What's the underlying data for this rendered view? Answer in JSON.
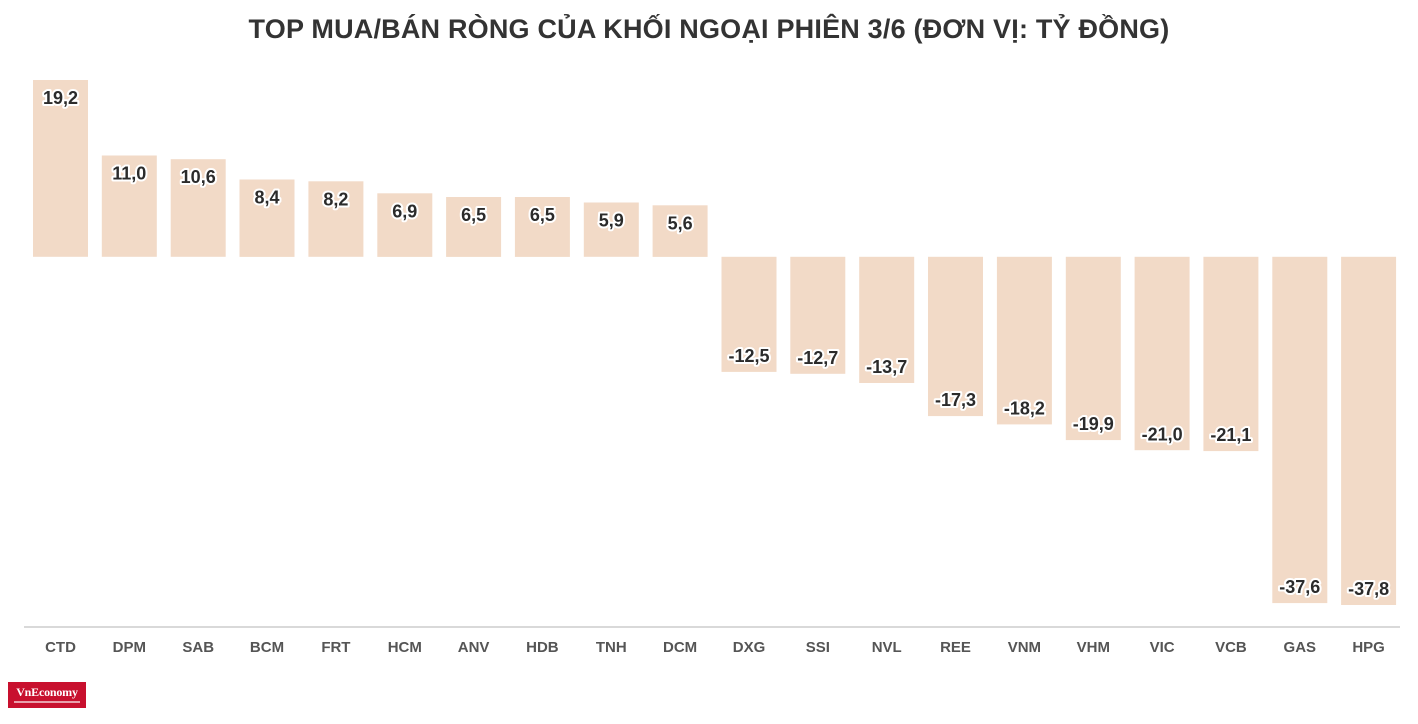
{
  "title": "TOP MUA/BÁN RÒNG CỦA KHỐI NGOẠI PHIÊN 3/6 (ĐƠN VỊ: TỶ ĐỒNG)",
  "brand": {
    "name": "VnEconomy",
    "color": "#c8102e"
  },
  "colors": {
    "bar": "#f2dac7",
    "axis": "#d9d9d9",
    "label": "#2b2b2b",
    "tick": "#555555"
  },
  "chart_data": {
    "type": "bar",
    "title": "TOP MUA/BÁN RÒNG CỦA KHỐI NGOẠI PHIÊN 3/6 (ĐƠN VỊ: TỶ ĐỒNG)",
    "categories": [
      "CTD",
      "DPM",
      "SAB",
      "BCM",
      "FRT",
      "HCM",
      "ANV",
      "HDB",
      "TNH",
      "DCM",
      "DXG",
      "SSI",
      "NVL",
      "REE",
      "VNM",
      "VHM",
      "VIC",
      "VCB",
      "GAS",
      "HPG"
    ],
    "values": [
      19.2,
      11.0,
      10.6,
      8.4,
      8.2,
      6.9,
      6.5,
      6.5,
      5.9,
      5.6,
      -12.5,
      -12.7,
      -13.7,
      -17.3,
      -18.2,
      -19.9,
      -21.0,
      -21.1,
      -37.6,
      -37.8
    ],
    "value_labels": [
      "19,2",
      "11,0",
      "10,6",
      "8,4",
      "8,2",
      "6,9",
      "6,5",
      "6,5",
      "5,9",
      "5,6",
      "-12,5",
      "-12,7",
      "-13,7",
      "-17,3",
      "-18,2",
      "-19,9",
      "-21,0",
      "-21,1",
      "-37,6",
      "-37,8"
    ],
    "xlabel": "",
    "ylabel": "",
    "ylim": [
      -37.8,
      19.2
    ],
    "grid": false,
    "legend": "none"
  }
}
